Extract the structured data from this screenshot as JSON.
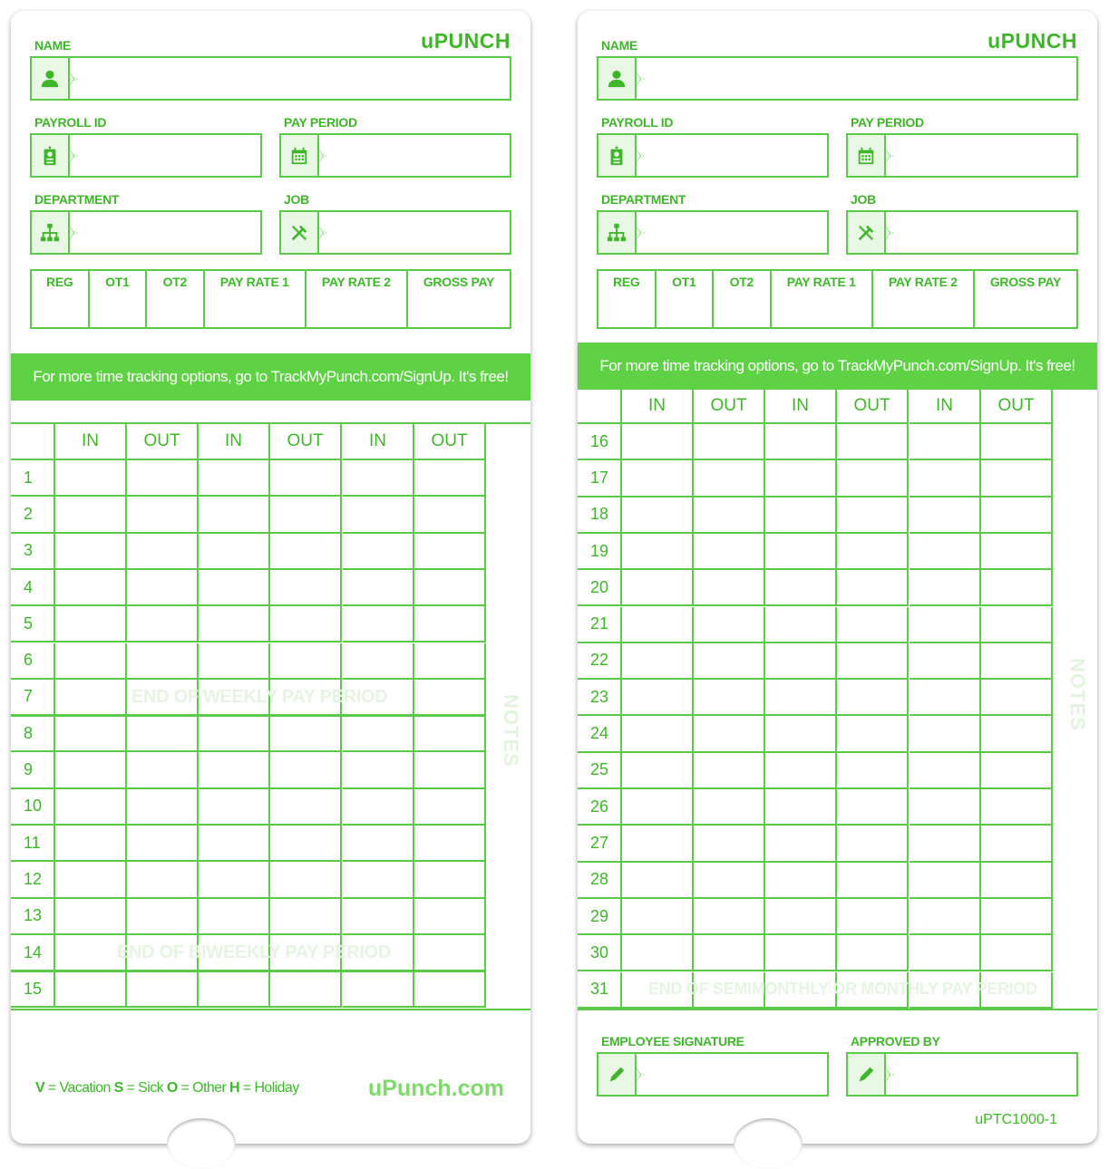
{
  "brand": "uPUNCH",
  "colors": {
    "primary": "#3fb52a",
    "line": "#5acb46",
    "banner": "#5ed144"
  },
  "fields": {
    "name": "NAME",
    "payroll_id": "PAYROLL ID",
    "pay_period": "PAY PERIOD",
    "department": "DEPARTMENT",
    "job": "JOB"
  },
  "icons": {
    "name": "person-icon",
    "payroll_id": "id-badge-icon",
    "pay_period": "calendar-icon",
    "department": "org-chart-icon",
    "job": "tools-icon",
    "signature": "pencil-icon"
  },
  "pay_columns": [
    "REG",
    "OT1",
    "OT2",
    "PAY RATE 1",
    "PAY RATE 2",
    "GROSS PAY"
  ],
  "banner": "For more time tracking options, go to TrackMyPunch.com/SignUp. It's free!",
  "punch_columns": [
    "IN",
    "OUT",
    "IN",
    "OUT",
    "IN",
    "OUT"
  ],
  "left_days": [
    "1",
    "2",
    "3",
    "4",
    "5",
    "6",
    "7",
    "8",
    "9",
    "10",
    "11",
    "12",
    "13",
    "14",
    "15"
  ],
  "right_days": [
    "16",
    "17",
    "18",
    "19",
    "20",
    "21",
    "22",
    "23",
    "24",
    "25",
    "26",
    "27",
    "28",
    "29",
    "30",
    "31"
  ],
  "watermarks": {
    "weekly": "END OF WEEKLY PAY PERIOD",
    "biweekly": "END OF BIWEEKLY PAY PERIOD",
    "monthly": "END OF SEMIMONTHLY OR MONTHLY PAY PERIOD",
    "notes": "NOTES"
  },
  "legend": [
    {
      "key": "V",
      "label": "Vacation"
    },
    {
      "key": "S",
      "label": "Sick"
    },
    {
      "key": "O",
      "label": "Other"
    },
    {
      "key": "H",
      "label": "Holiday"
    }
  ],
  "website": "uPunch.com",
  "signature": {
    "employee": "EMPLOYEE SIGNATURE",
    "approved": "APPROVED BY"
  },
  "form_code": "uPTC1000-1"
}
